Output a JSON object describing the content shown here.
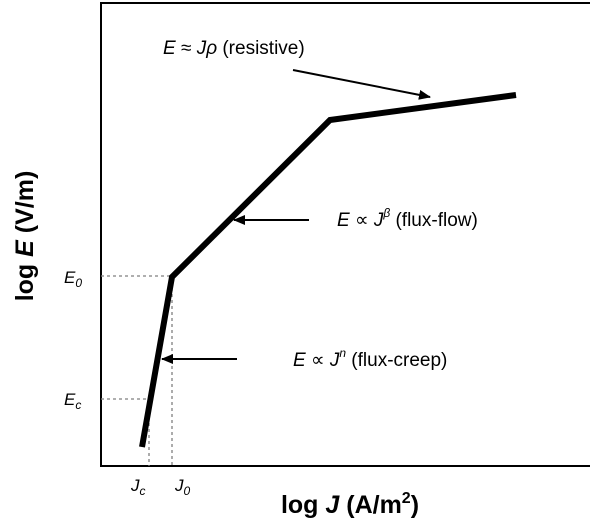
{
  "axes": {
    "x_label_prefix": "log ",
    "x_label_var": "J",
    "x_label_unit": " (A/m",
    "x_label_exp": "2",
    "x_label_close": ")",
    "y_label_prefix": "log ",
    "y_label_var": "E",
    "y_label_unit": " (V/m)"
  },
  "ticks": {
    "jc_main": "J",
    "jc_sub": "c",
    "j0_main": "J",
    "j0_sub": "0",
    "ec_main": "E",
    "ec_sub": "c",
    "e0_main": "E",
    "e0_sub": "0"
  },
  "annotations": {
    "resistive": {
      "lhs": "E",
      "op": " ≈ ",
      "rhs": "Jρ",
      "desc": " (resistive)"
    },
    "flux_flow": {
      "lhs": "E",
      "op": " ∝ ",
      "base": "J",
      "exp": "β",
      "desc": " (flux-flow)"
    },
    "flux_creep": {
      "lhs": "E",
      "op": " ∝ ",
      "base": "J",
      "exp": "n",
      "desc": " (flux-creep)"
    }
  },
  "colors": {
    "curve": "#000000",
    "guides": "#7f7f7f",
    "frame": "#000000"
  }
}
